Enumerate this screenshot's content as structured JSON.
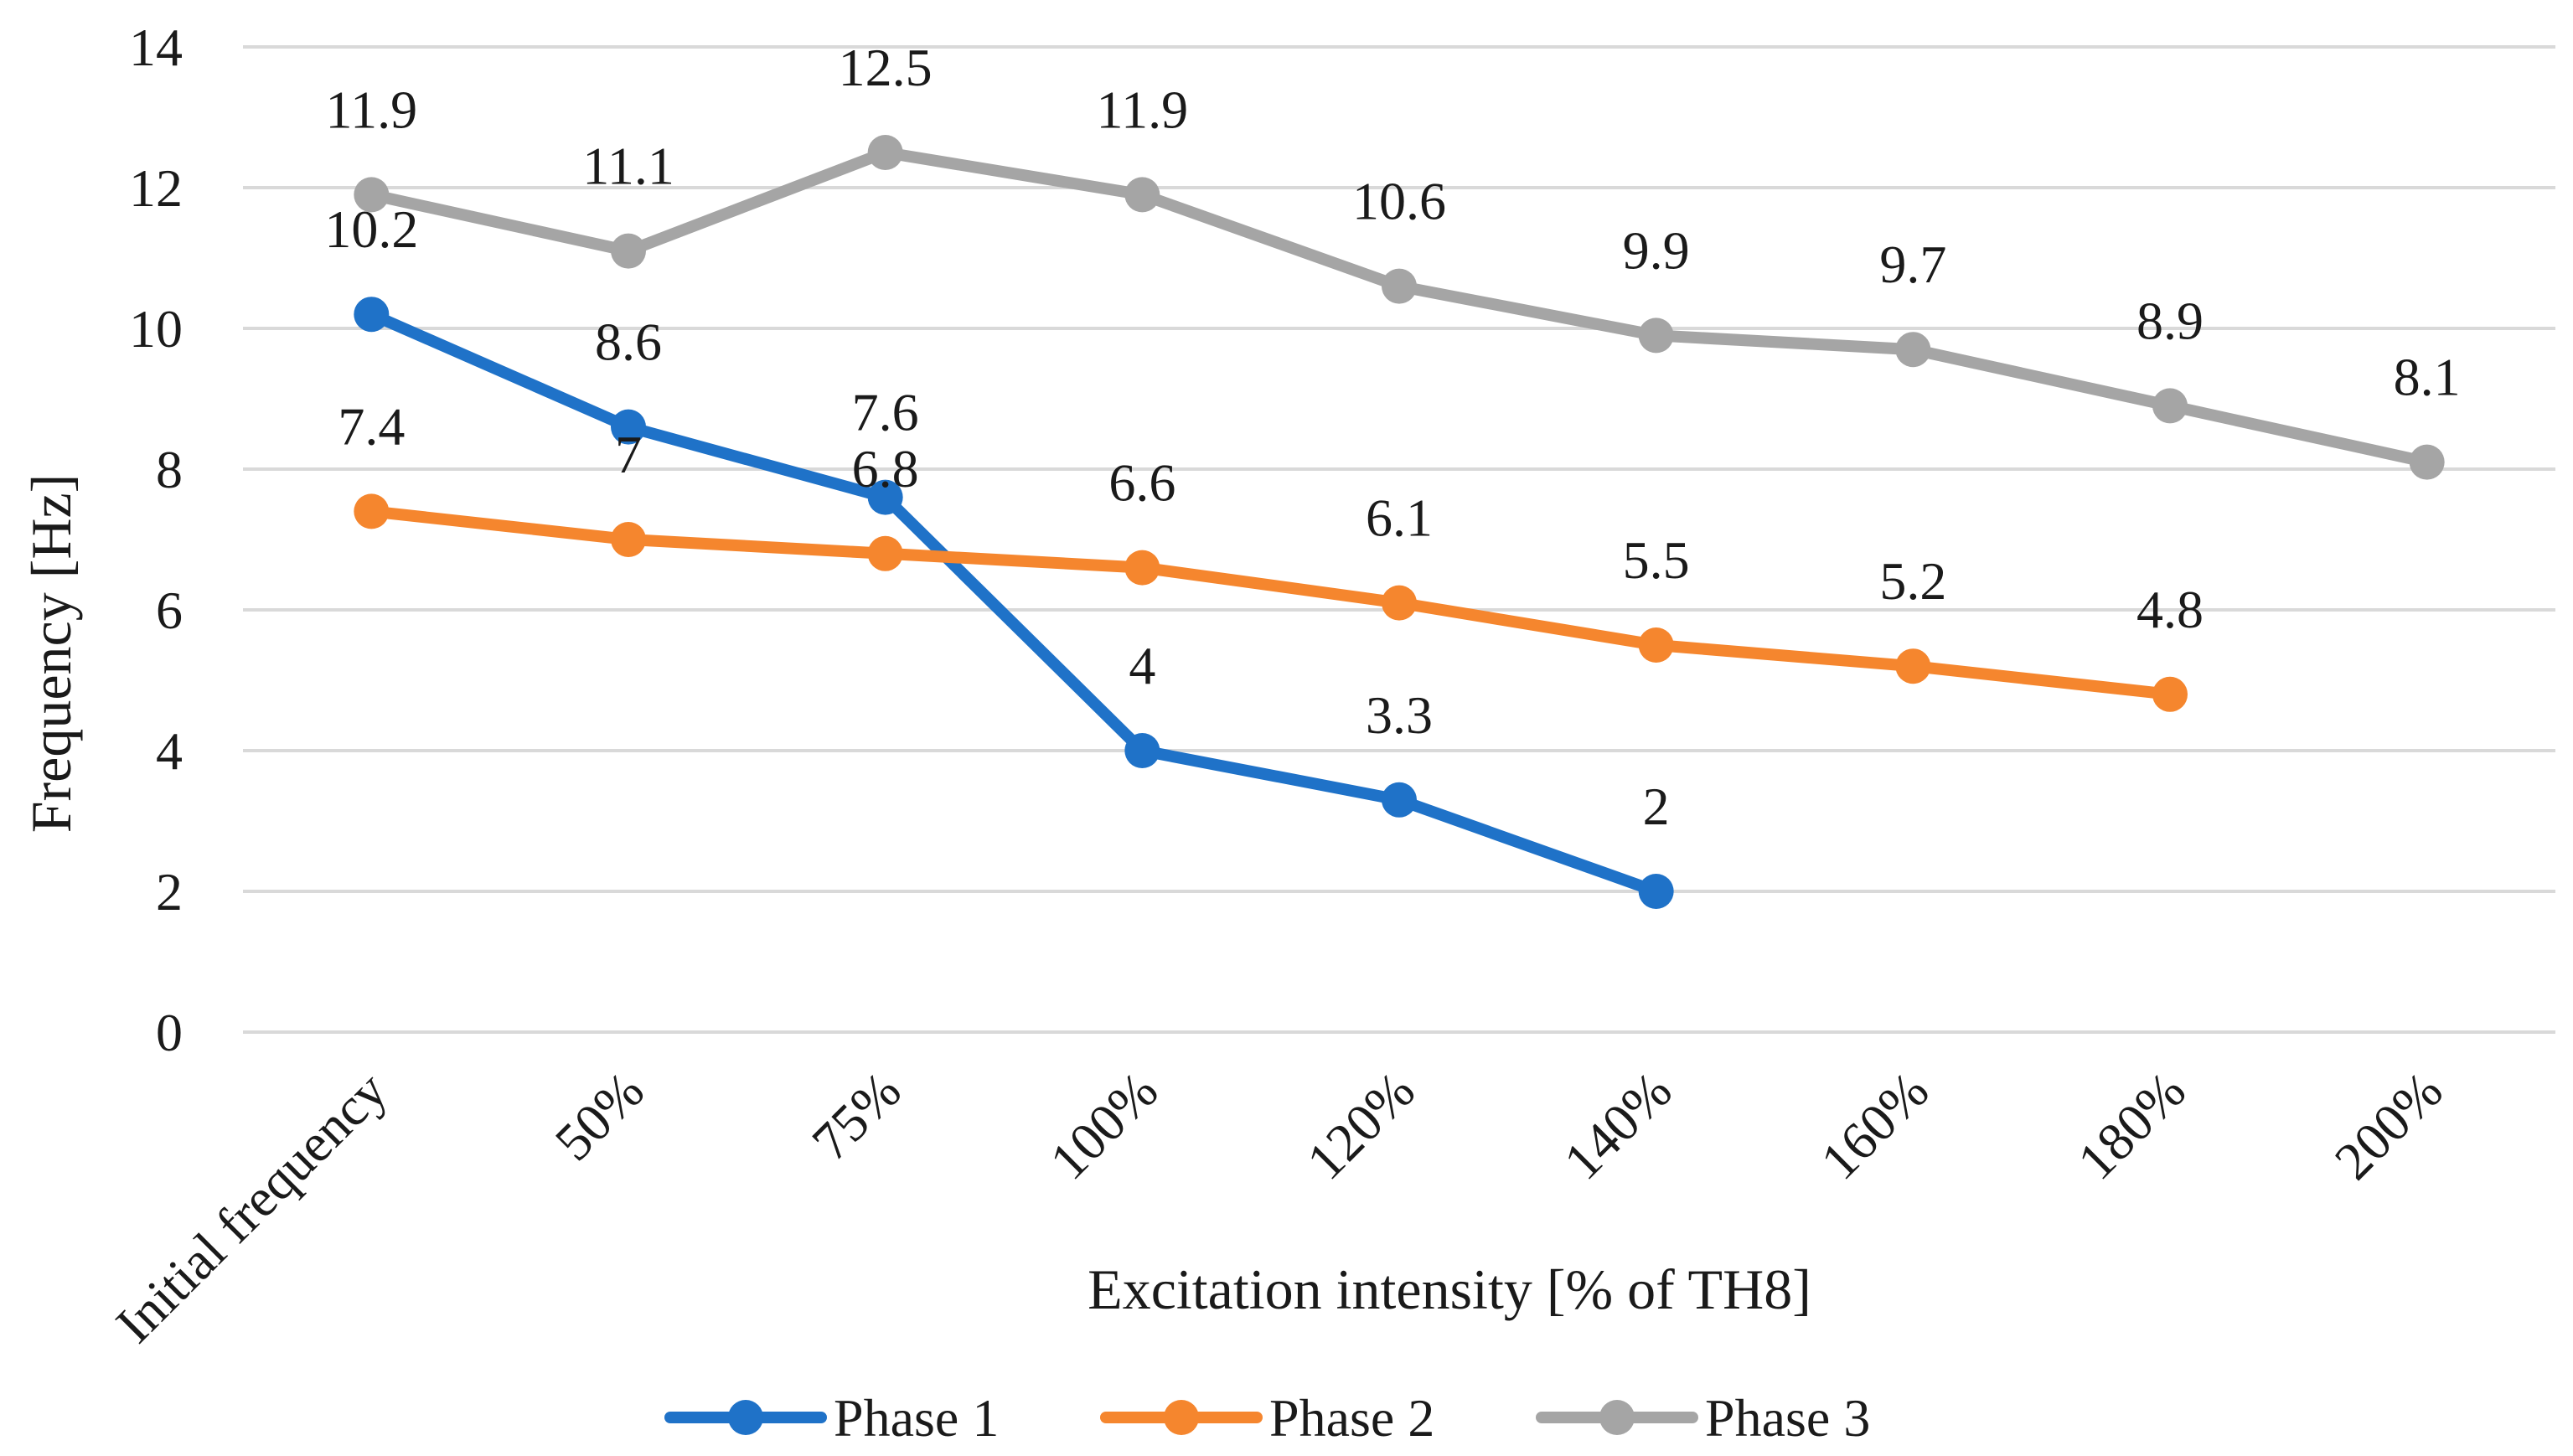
{
  "chart_data": {
    "type": "line",
    "title": "",
    "xlabel": "Excitation intensity [% of TH8]",
    "ylabel": "Frequency [Hz]",
    "ylim": [
      0,
      14
    ],
    "yticks": [
      0,
      2,
      4,
      6,
      8,
      10,
      12,
      14
    ],
    "grid": "horizontal",
    "legend": "bottom",
    "categories": [
      "Initial frequency",
      "50%",
      "75%",
      "100%",
      "120%",
      "140%",
      "160%",
      "180%",
      "200%"
    ],
    "series": [
      {
        "name": "Phase 1",
        "color": "#1f72c8",
        "values": [
          10.2,
          8.6,
          7.6,
          4,
          3.3,
          2,
          null,
          null,
          null
        ],
        "labels": [
          "10.2",
          "8.6",
          "7.6",
          "4",
          "3.3",
          "2",
          null,
          null,
          null
        ]
      },
      {
        "name": "Phase 2",
        "color": "#f5862e",
        "values": [
          7.4,
          7,
          6.8,
          6.6,
          6.1,
          5.5,
          5.2,
          4.8,
          null
        ],
        "labels": [
          "7.4",
          "7",
          "6.8",
          "6.6",
          "6.1",
          "5.5",
          "5.2",
          "4.8",
          null
        ]
      },
      {
        "name": "Phase 3",
        "color": "#a5a5a5",
        "values": [
          11.9,
          11.1,
          12.5,
          11.9,
          10.6,
          9.9,
          9.7,
          8.9,
          8.1
        ],
        "labels": [
          "11.9",
          "11.1",
          "12.5",
          "11.9",
          "10.6",
          "9.9",
          "9.7",
          "8.9",
          "8.1"
        ]
      }
    ]
  }
}
